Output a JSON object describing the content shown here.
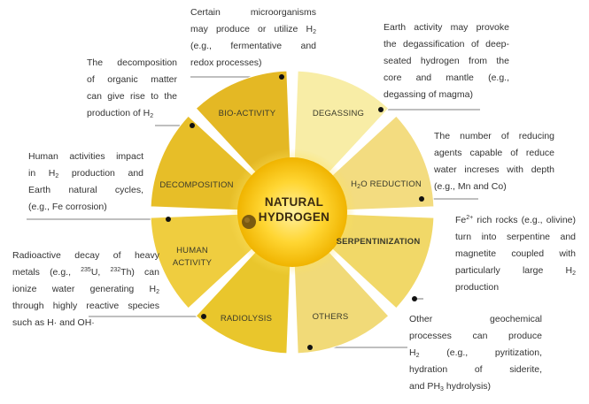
{
  "center": {
    "line1": "NATURAL",
    "line2": "HYDROGEN"
  },
  "segments": {
    "bio_activity": "BIO-ACTIVITY",
    "degassing": "DEGASSING",
    "h2o_reduction_h": "H",
    "h2o_reduction_sub": "2",
    "h2o_reduction_rest": "O REDUCTION",
    "serpentinization": "SERPENTINIZATION",
    "others": "OTHERS",
    "radiolysis": "RADIOLYSIS",
    "human_activity_1": "HUMAN",
    "human_activity_2": "ACTIVITY",
    "decomposition": "DECOMPOSITION"
  },
  "notes": {
    "microorganisms": {
      "l1": "Certain microorganisms",
      "l2a": "may produce or utilize H",
      "l2sub": "2",
      "l3": "(e.g., fermentative and",
      "l4": "redox processes)"
    },
    "degassing": {
      "l1": "Earth activity may provoke",
      "l2": "the degassification of deep-",
      "l3": "seated hydrogen from the",
      "l4": "core and mantle (e.g.,",
      "l5": "degassing of magma)"
    },
    "decomposition": {
      "l1": "The decomposition",
      "l2": "of organic matter",
      "l3": "can give rise to the",
      "l4a": "production of H",
      "l4sub": "2"
    },
    "reduction": {
      "l1": "The number of reducing",
      "l2": "agents capable of reduce",
      "l3": "water increses with depth",
      "l4": "(e.g., Mn and Co)"
    },
    "human": {
      "l1": "Human activities impact",
      "l2a": "in H",
      "l2sub": "2",
      "l2b": " production and",
      "l3": "Earth natural cycles,",
      "l4": "(e.g., Fe corrosion)"
    },
    "serpentinization": {
      "l1a": "Fe",
      "l1sup": "2+",
      "l1b": " rich rocks (e.g., olivine)",
      "l2": "turn into serpentine and",
      "l3": "magnetite coupled with",
      "l4a": "particularly large H",
      "l4sub": "2",
      "l5": "production"
    },
    "radiolysis": {
      "l1": "Radioactive decay of heavy",
      "l2a": "metals (e.g., ",
      "l2sup1": "235",
      "l2b": "U, ",
      "l2sup2": "232",
      "l2c": "Th) can",
      "l3a": "ionize water generating H",
      "l3sub": "2",
      "l4": "through highly reactive species",
      "l5": "such as H· and OH·"
    },
    "others": {
      "l1": "Other geochemical",
      "l2": "processes can produce",
      "l3a": "H",
      "l3sub": "2",
      "l3b": " (e.g., pyritization,",
      "l4": "hydration of siderite,",
      "l5a": "and PH",
      "l5sub": "3",
      "l5b": " hydrolysis)"
    }
  }
}
